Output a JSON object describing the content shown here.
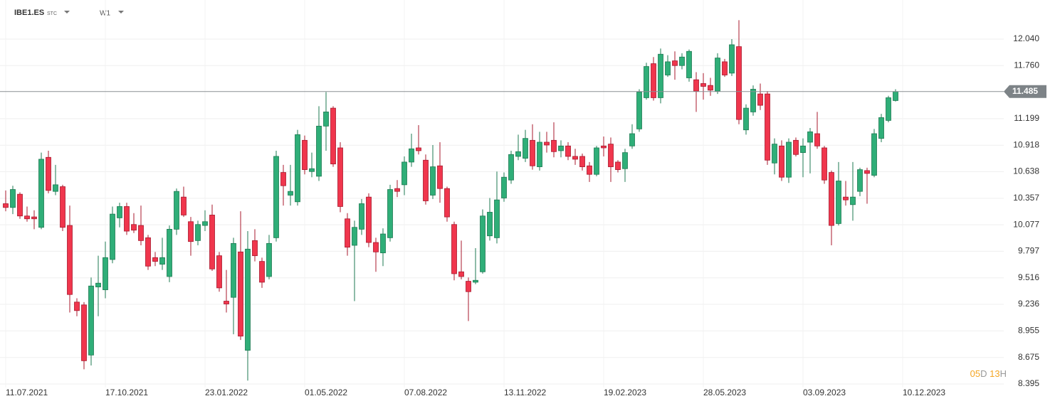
{
  "chart_data": {
    "type": "candlestick",
    "symbol": "IBE1.ES",
    "exchange": "STC",
    "interval": "W1",
    "countdown": {
      "days": "05",
      "days_unit": "D",
      "hours": "13",
      "hours_unit": "H"
    },
    "up_color": "#2fae78",
    "down_color": "#f0364d",
    "grid": true,
    "ylim": [
      8.357,
      12.453
    ],
    "yticks": [
      {
        "value": 8.395,
        "label": "8.395"
      },
      {
        "value": 8.675,
        "label": "8.675"
      },
      {
        "value": 8.955,
        "label": "8.955"
      },
      {
        "value": 9.236,
        "label": "9.236"
      },
      {
        "value": 9.516,
        "label": "9.516"
      },
      {
        "value": 9.797,
        "label": "9.797"
      },
      {
        "value": 10.077,
        "label": "10.077"
      },
      {
        "value": 10.357,
        "label": "10.357"
      },
      {
        "value": 10.638,
        "label": "10.638"
      },
      {
        "value": 10.918,
        "label": "10.918"
      },
      {
        "value": 11.199,
        "label": "11.199"
      },
      {
        "value": 11.76,
        "label": "11.760"
      },
      {
        "value": 12.04,
        "label": "12.040"
      }
    ],
    "categories": [
      "11.07.2021",
      null,
      null,
      null,
      null,
      null,
      null,
      null,
      null,
      null,
      null,
      null,
      null,
      null,
      "17.10.2021",
      null,
      null,
      null,
      null,
      null,
      null,
      null,
      null,
      null,
      null,
      null,
      null,
      null,
      "23.01.2022",
      null,
      null,
      null,
      null,
      null,
      null,
      null,
      null,
      null,
      null,
      null,
      null,
      null,
      "01.05.2022",
      null,
      null,
      null,
      null,
      null,
      null,
      null,
      null,
      null,
      null,
      null,
      null,
      null,
      "07.08.2022",
      null,
      null,
      null,
      null,
      null,
      null,
      null,
      null,
      null,
      null,
      null,
      null,
      null,
      "13.11.2022",
      null,
      null,
      null,
      null,
      null,
      null,
      null,
      null,
      null,
      null,
      null,
      null,
      null,
      "19.02.2023",
      null,
      null,
      null,
      null,
      null,
      null,
      null,
      null,
      null,
      null,
      null,
      null,
      null,
      "28.05.2023",
      null,
      null,
      null,
      null,
      null,
      null,
      null,
      null,
      null,
      null,
      null,
      null,
      null,
      "03.09.2023",
      null,
      null,
      null,
      null,
      null,
      null,
      null,
      null,
      null,
      null,
      null,
      null,
      null,
      "10.12.2023"
    ],
    "open": [
      10.3,
      10.26,
      10.4,
      10.17,
      10.16,
      10.05,
      10.79,
      10.43,
      10.48,
      10.07,
      9.26,
      9.23,
      8.7,
      9.42,
      9.39,
      9.71,
      10.15,
      10.27,
      10.08,
      10.07,
      9.94,
      9.73,
      9.66,
      9.53,
      10.03,
      10.37,
      10.11,
      9.91,
      10.07,
      10.18,
      9.75,
      9.27,
      9.31,
      9.79,
      8.75,
      9.91,
      9.69,
      9.53,
      9.94,
      10.63,
      10.39,
      10.32,
      10.97,
      10.64,
      10.59,
      11.12,
      11.31,
      10.89,
      10.14,
      9.86,
      10.03,
      10.37,
      9.89,
      9.78,
      9.94,
      10.46,
      10.5,
      10.74,
      10.89,
      10.76,
      10.39,
      10.7,
      10.46,
      10.08,
      9.58,
      9.48,
      9.47,
      9.58,
      9.96,
      9.94,
      10.36,
      10.55,
      10.8,
      10.78,
      10.97,
      10.69,
      10.95,
      10.97,
      10.86,
      10.91,
      10.8,
      10.8,
      10.7,
      10.61,
      10.91,
      10.93,
      10.74,
      10.67,
      10.91,
      11.09,
      11.42,
      11.78,
      11.42,
      11.66,
      11.81,
      11.76,
      11.63,
      11.61,
      11.57,
      11.55,
      11.49,
      11.8,
      11.68,
      11.96,
      11.08,
      11.27,
      11.46,
      11.46,
      10.73,
      10.91,
      10.58,
      10.97,
      10.84,
      10.95,
      11.04,
      10.89,
      10.63,
      10.09,
      10.37,
      10.29,
      10.43,
      10.65,
      10.6,
      10.99,
      11.18,
      11.39,
      null
    ],
    "high": [
      10.44,
      10.49,
      10.42,
      10.27,
      10.23,
      10.84,
      10.86,
      10.71,
      10.5,
      10.28,
      9.3,
      9.26,
      9.52,
      9.75,
      9.9,
      10.27,
      10.31,
      10.31,
      10.2,
      10.28,
      9.97,
      9.79,
      9.94,
      10.07,
      10.46,
      10.48,
      10.16,
      10.12,
      10.23,
      10.29,
      9.79,
      9.6,
      9.94,
      10.22,
      10.01,
      10.03,
      9.73,
      9.97,
      10.86,
      10.71,
      10.71,
      11.08,
      11.02,
      10.84,
      11.33,
      11.48,
      11.33,
      10.95,
      10.2,
      10.12,
      10.35,
      10.41,
      9.94,
      10.04,
      10.5,
      10.55,
      10.8,
      11.04,
      11.13,
      10.82,
      10.92,
      10.95,
      10.48,
      10.11,
      9.91,
      9.52,
      9.83,
      10.24,
      10.36,
      10.64,
      10.63,
      10.86,
      11.03,
      11.08,
      11.14,
      11.06,
      11.06,
      11.16,
      10.97,
      10.95,
      10.88,
      10.83,
      10.74,
      10.91,
      11.01,
      11.0,
      10.76,
      10.88,
      11.14,
      11.51,
      11.79,
      11.85,
      11.94,
      11.87,
      11.91,
      11.89,
      11.93,
      11.69,
      11.68,
      11.63,
      11.89,
      11.83,
      12.04,
      12.24,
      11.35,
      11.55,
      11.57,
      11.49,
      10.99,
      10.97,
      10.99,
      11.0,
      10.99,
      11.1,
      11.27,
      10.91,
      10.65,
      10.74,
      10.54,
      10.74,
      10.68,
      10.68,
      11.09,
      11.25,
      11.44,
      11.51,
      null
    ],
    "low": [
      10.22,
      10.19,
      10.14,
      10.11,
      10.03,
      10.03,
      10.41,
      10.39,
      10.01,
      9.15,
      9.11,
      8.55,
      8.59,
      9.11,
      9.3,
      9.67,
      10.05,
      9.97,
      9.99,
      9.86,
      9.6,
      9.64,
      9.6,
      9.47,
      9.97,
      10.16,
      9.75,
      9.86,
      10.01,
      9.59,
      9.37,
      9.15,
      8.92,
      8.86,
      8.43,
      9.69,
      9.41,
      9.5,
      9.9,
      10.28,
      10.28,
      10.28,
      10.61,
      10.58,
      10.54,
      10.86,
      10.69,
      10.21,
      9.75,
      9.27,
      9.97,
      9.84,
      9.58,
      9.64,
      9.9,
      10.37,
      10.39,
      10.69,
      10.82,
      10.29,
      10.35,
      10.31,
      10.11,
      9.49,
      9.5,
      9.06,
      9.45,
      9.56,
      9.91,
      9.88,
      10.32,
      10.51,
      10.76,
      10.74,
      10.66,
      10.65,
      10.84,
      10.79,
      10.79,
      10.76,
      10.71,
      10.65,
      10.53,
      10.59,
      10.8,
      10.53,
      10.63,
      10.53,
      10.88,
      11.06,
      11.4,
      11.39,
      11.36,
      11.64,
      11.61,
      11.72,
      11.59,
      11.27,
      11.4,
      11.44,
      11.46,
      11.64,
      11.65,
      11.14,
      11.03,
      11.23,
      11.29,
      10.71,
      10.61,
      10.54,
      10.52,
      10.8,
      10.58,
      10.62,
      10.88,
      10.51,
      9.86,
      10.07,
      10.28,
      10.12,
      10.38,
      10.3,
      10.58,
      10.95,
      11.16,
      11.38,
      null
    ],
    "close": [
      10.26,
      10.45,
      10.17,
      10.14,
      10.14,
      10.77,
      10.44,
      10.5,
      10.05,
      9.34,
      9.17,
      8.64,
      9.43,
      9.46,
      9.73,
      10.19,
      10.27,
      10.01,
      10.02,
      9.91,
      9.64,
      9.69,
      9.73,
      10.03,
      10.43,
      10.18,
      9.9,
      10.08,
      10.11,
      9.61,
      9.41,
      9.24,
      9.88,
      8.9,
      9.82,
      9.75,
      9.47,
      9.88,
      10.8,
      10.49,
      10.43,
      11.03,
      10.66,
      10.67,
      11.12,
      11.27,
      10.72,
      10.27,
      9.84,
      10.05,
      10.3,
      9.89,
      9.79,
      9.98,
      10.45,
      10.43,
      10.74,
      10.88,
      10.86,
      10.33,
      10.69,
      10.46,
      10.16,
      9.56,
      9.53,
      9.37,
      9.49,
      10.17,
      10.21,
      10.34,
      10.58,
      10.82,
      10.85,
      10.99,
      10.7,
      10.95,
      10.92,
      10.85,
      10.91,
      10.8,
      10.77,
      10.69,
      10.61,
      10.89,
      10.89,
      10.69,
      10.66,
      10.84,
      11.04,
      11.48,
      11.75,
      11.42,
      11.88,
      11.8,
      11.76,
      11.85,
      11.91,
      11.49,
      11.54,
      11.5,
      11.84,
      11.66,
      11.98,
      11.19,
      11.31,
      11.51,
      11.34,
      10.76,
      10.93,
      10.58,
      10.95,
      10.82,
      10.91,
      11.06,
      10.91,
      10.55,
      10.07,
      10.54,
      10.34,
      10.37,
      10.66,
      10.62,
      11.04,
      11.21,
      11.42,
      11.485,
      null
    ]
  }
}
